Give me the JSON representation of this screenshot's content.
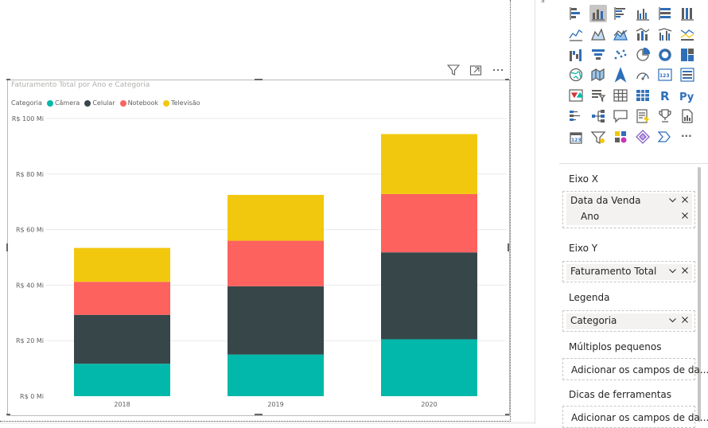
{
  "pane_edge_label": "s",
  "visual": {
    "title": "Faturamento Total por Ano e Categoria",
    "legend_title": "Categoria",
    "header_icons": [
      "filter-icon",
      "focus-mode-icon",
      "more-options-icon"
    ]
  },
  "chart_data": {
    "type": "bar",
    "stacked": true,
    "title": "Faturamento Total por Ano e Categoria",
    "legend_title": "Categoria",
    "legend_position": "top-left",
    "categories": [
      "2018",
      "2019",
      "2020"
    ],
    "series": [
      {
        "name": "Câmera",
        "color": "#01b8aa",
        "values": [
          11.7,
          15.0,
          20.5
        ]
      },
      {
        "name": "Celular",
        "color": "#374649",
        "values": [
          17.6,
          24.6,
          31.3
        ]
      },
      {
        "name": "Notebook",
        "color": "#fd625e",
        "values": [
          11.9,
          16.4,
          21.0
        ]
      },
      {
        "name": "Televisão",
        "color": "#f2c80f",
        "values": [
          12.2,
          16.5,
          21.6
        ]
      }
    ],
    "y_ticks": [
      "R$ 0 Mi",
      "R$ 20 Mi",
      "R$ 40 Mi",
      "R$ 60 Mi",
      "R$ 80 Mi",
      "R$ 100 Mi"
    ],
    "y_tick_values": [
      0,
      20,
      40,
      60,
      80,
      100
    ],
    "ylim": [
      0,
      100
    ],
    "grid": true
  },
  "viz_icons": [
    "stacked-bar-chart-icon",
    "stacked-column-chart-icon",
    "clustered-bar-chart-icon",
    "clustered-column-chart-icon",
    "100-stacked-bar-chart-icon",
    "100-stacked-column-chart-icon",
    "line-chart-icon",
    "area-chart-icon",
    "stacked-area-chart-icon",
    "line-and-stacked-column-icon",
    "line-and-clustered-column-icon",
    "ribbon-chart-icon",
    "waterfall-chart-icon",
    "funnel-chart-icon",
    "scatter-chart-icon",
    "pie-chart-icon",
    "donut-chart-icon",
    "treemap-icon",
    "map-icon",
    "filled-map-icon",
    "azure-map-icon",
    "gauge-icon",
    "card-icon",
    "multi-row-card-icon",
    "kpi-icon",
    "slicer-icon",
    "table-icon",
    "matrix-icon",
    "r-script-visual-icon",
    "python-visual-icon",
    "key-influencers-icon",
    "decomposition-tree-icon",
    "qa-icon",
    "smart-narrative-icon",
    "trophy-goals-icon",
    "paginated-report-icon",
    "power-apps-icon",
    "power-automate-icon",
    "custom-visual-icon",
    "diamond-visual-icon",
    "chevron-visual-icon",
    "more-visuals-icon"
  ],
  "selected_viz": "stacked-column-chart-icon",
  "r_label": "R",
  "py_label": "Py",
  "kpi_label": "123",
  "more_label": "···",
  "wells": {
    "x_axis": {
      "label": "Eixo X",
      "field": "Data da Venda",
      "sub_field": "Ano"
    },
    "y_axis": {
      "label": "Eixo Y",
      "field": "Faturamento Total"
    },
    "legend": {
      "label": "Legenda",
      "field": "Categoria"
    },
    "small_multiples": {
      "label": "Múltiplos pequenos",
      "placeholder": "Adicionar os campos de da..."
    },
    "tooltips": {
      "label": "Dicas de ferramentas",
      "placeholder": "Adicionar os campos de da..."
    }
  }
}
